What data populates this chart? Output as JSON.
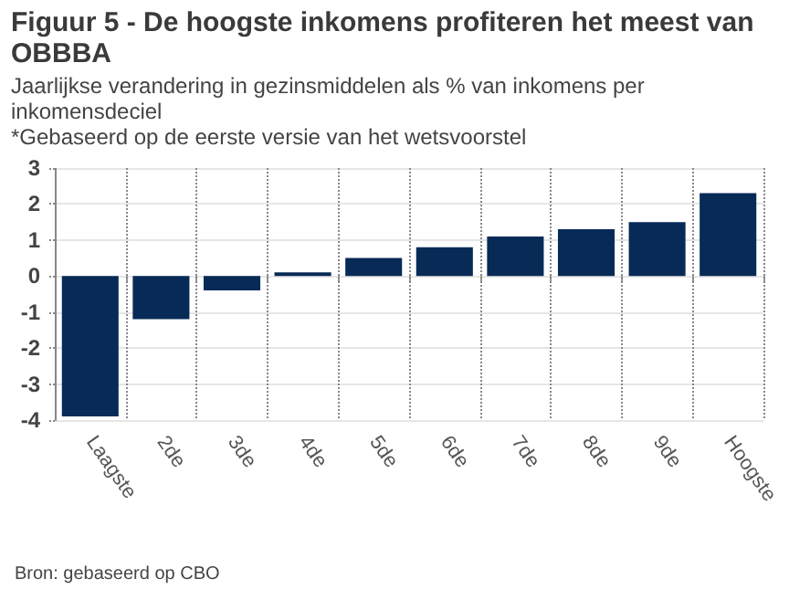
{
  "chart_data": {
    "type": "bar",
    "title": "Figuur 5 - De hoogste inkomens profiteren het meest van OBBBA",
    "subtitle": "Jaarlijkse verandering in gezinsmiddelen als % van inkomens per inkomensdeciel",
    "annotations": [
      "*Gebaseerd op de eerste versie van het wetsvoorstel",
      "Bron: gebaseerd op CBO"
    ],
    "categories": [
      "Laagste",
      "2de",
      "3de",
      "4de",
      "5de",
      "6de",
      "7de",
      "8de",
      "9de",
      "Hoogste"
    ],
    "values": [
      -3.9,
      -1.2,
      -0.4,
      0.1,
      0.5,
      0.8,
      1.1,
      1.3,
      1.5,
      2.3
    ],
    "color": "#082a57",
    "ylim": [
      -4,
      3
    ],
    "yticks": [
      -4,
      -3,
      -2,
      -1,
      0,
      1,
      2,
      3
    ],
    "grid": true
  }
}
